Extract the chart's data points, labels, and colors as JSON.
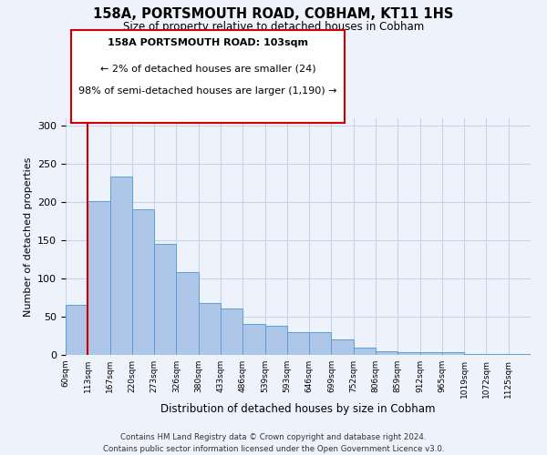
{
  "title": "158A, PORTSMOUTH ROAD, COBHAM, KT11 1HS",
  "subtitle": "Size of property relative to detached houses in Cobham",
  "xlabel": "Distribution of detached houses by size in Cobham",
  "ylabel": "Number of detached properties",
  "categories": [
    "60sqm",
    "113sqm",
    "167sqm",
    "220sqm",
    "273sqm",
    "326sqm",
    "380sqm",
    "433sqm",
    "486sqm",
    "539sqm",
    "593sqm",
    "646sqm",
    "699sqm",
    "752sqm",
    "806sqm",
    "859sqm",
    "912sqm",
    "965sqm",
    "1019sqm",
    "1072sqm",
    "1125sqm"
  ],
  "values": [
    65,
    202,
    234,
    191,
    145,
    109,
    68,
    61,
    40,
    38,
    30,
    30,
    20,
    10,
    5,
    3,
    4,
    3,
    1,
    1,
    1
  ],
  "bar_color": "#aec6e8",
  "bar_edge_color": "#5a9fd4",
  "ylim": [
    0,
    310
  ],
  "yticks": [
    0,
    50,
    100,
    150,
    200,
    250,
    300
  ],
  "property_line_x": 1,
  "property_line_color": "#cc0000",
  "annotation_title": "158A PORTSMOUTH ROAD: 103sqm",
  "annotation_line1": "← 2% of detached houses are smaller (24)",
  "annotation_line2": "98% of semi-detached houses are larger (1,190) →",
  "annotation_box_color": "#cc0000",
  "footer_line1": "Contains HM Land Registry data © Crown copyright and database right 2024.",
  "footer_line2": "Contains public sector information licensed under the Open Government Licence v3.0.",
  "bg_color": "#eef2fa",
  "grid_color": "#c8d4ee"
}
